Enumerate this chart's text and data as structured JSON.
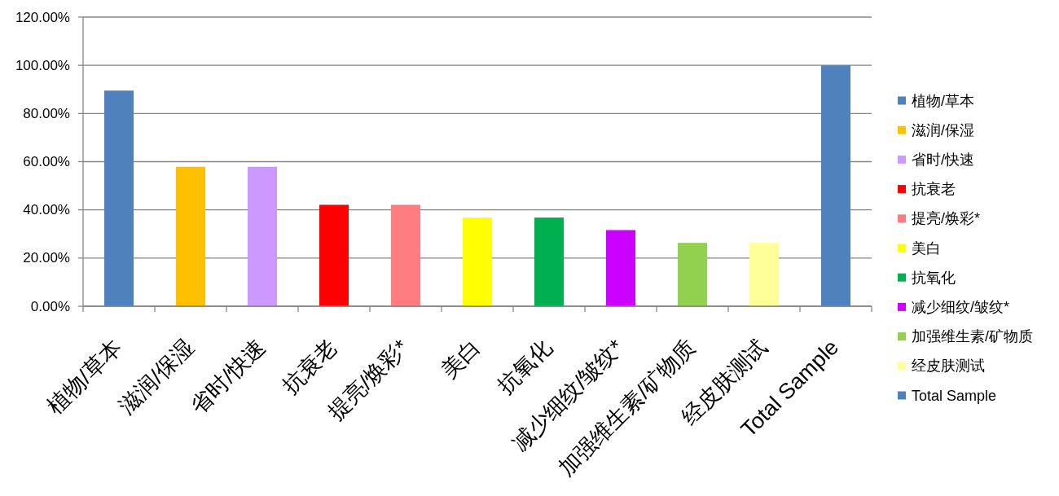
{
  "chart_data": {
    "type": "bar",
    "stacked": true,
    "categories": [
      "植物/草本",
      "滋润/保湿",
      "省时/快速",
      "抗衰老",
      "提亮/焕彩*",
      "美白",
      "抗氧化",
      "减少细纹/皱纹*",
      "加强维生素/矿物质",
      "经皮肤测试",
      "Total Sample"
    ],
    "series": [
      {
        "name": "植物/草本",
        "color": "#4f81bd",
        "values": [
          89.5,
          null,
          null,
          null,
          null,
          null,
          null,
          null,
          null,
          null,
          null
        ]
      },
      {
        "name": "滋润/保湿",
        "color": "#ffc000",
        "values": [
          null,
          57.9,
          null,
          null,
          null,
          null,
          null,
          null,
          null,
          null,
          null
        ]
      },
      {
        "name": "省时/快速",
        "color": "#cc99ff",
        "values": [
          null,
          null,
          57.9,
          null,
          null,
          null,
          null,
          null,
          null,
          null,
          null
        ]
      },
      {
        "name": "抗衰老",
        "color": "#ff0000",
        "values": [
          null,
          null,
          null,
          42.1,
          null,
          null,
          null,
          null,
          null,
          null,
          null
        ]
      },
      {
        "name": "提亮/焕彩*",
        "color": "#ff7c80",
        "values": [
          null,
          null,
          null,
          null,
          42.1,
          null,
          null,
          null,
          null,
          null,
          null
        ]
      },
      {
        "name": "美白",
        "color": "#ffff00",
        "values": [
          null,
          null,
          null,
          null,
          null,
          36.8,
          null,
          null,
          null,
          null,
          null
        ]
      },
      {
        "name": "抗氧化",
        "color": "#00b050",
        "values": [
          null,
          null,
          null,
          null,
          null,
          null,
          36.8,
          null,
          null,
          null,
          null
        ]
      },
      {
        "name": "减少细纹/皱纹*",
        "color": "#cc00ff",
        "values": [
          null,
          null,
          null,
          null,
          null,
          null,
          null,
          31.6,
          null,
          null,
          null
        ]
      },
      {
        "name": "加强维生素/矿物质",
        "color": "#92d050",
        "values": [
          null,
          null,
          null,
          null,
          null,
          null,
          null,
          null,
          26.3,
          null,
          null
        ]
      },
      {
        "name": "经皮肤测试",
        "color": "#ffff99",
        "values": [
          null,
          null,
          null,
          null,
          null,
          null,
          null,
          null,
          null,
          26.3,
          null
        ]
      },
      {
        "name": "Total Sample",
        "color": "#4f81bd",
        "values": [
          null,
          null,
          null,
          null,
          null,
          null,
          null,
          null,
          null,
          null,
          100
        ]
      }
    ],
    "ylim": [
      0,
      120
    ],
    "yticks": [
      {
        "value": 0,
        "label": "0.00%"
      },
      {
        "value": 20,
        "label": "20.00%"
      },
      {
        "value": 40,
        "label": "40.00%"
      },
      {
        "value": 60,
        "label": "60.00%"
      },
      {
        "value": 80,
        "label": "80.00%"
      },
      {
        "value": 100,
        "label": "100.00%"
      },
      {
        "value": 120,
        "label": "120.00%"
      }
    ],
    "grid": "y",
    "legend": "right"
  }
}
